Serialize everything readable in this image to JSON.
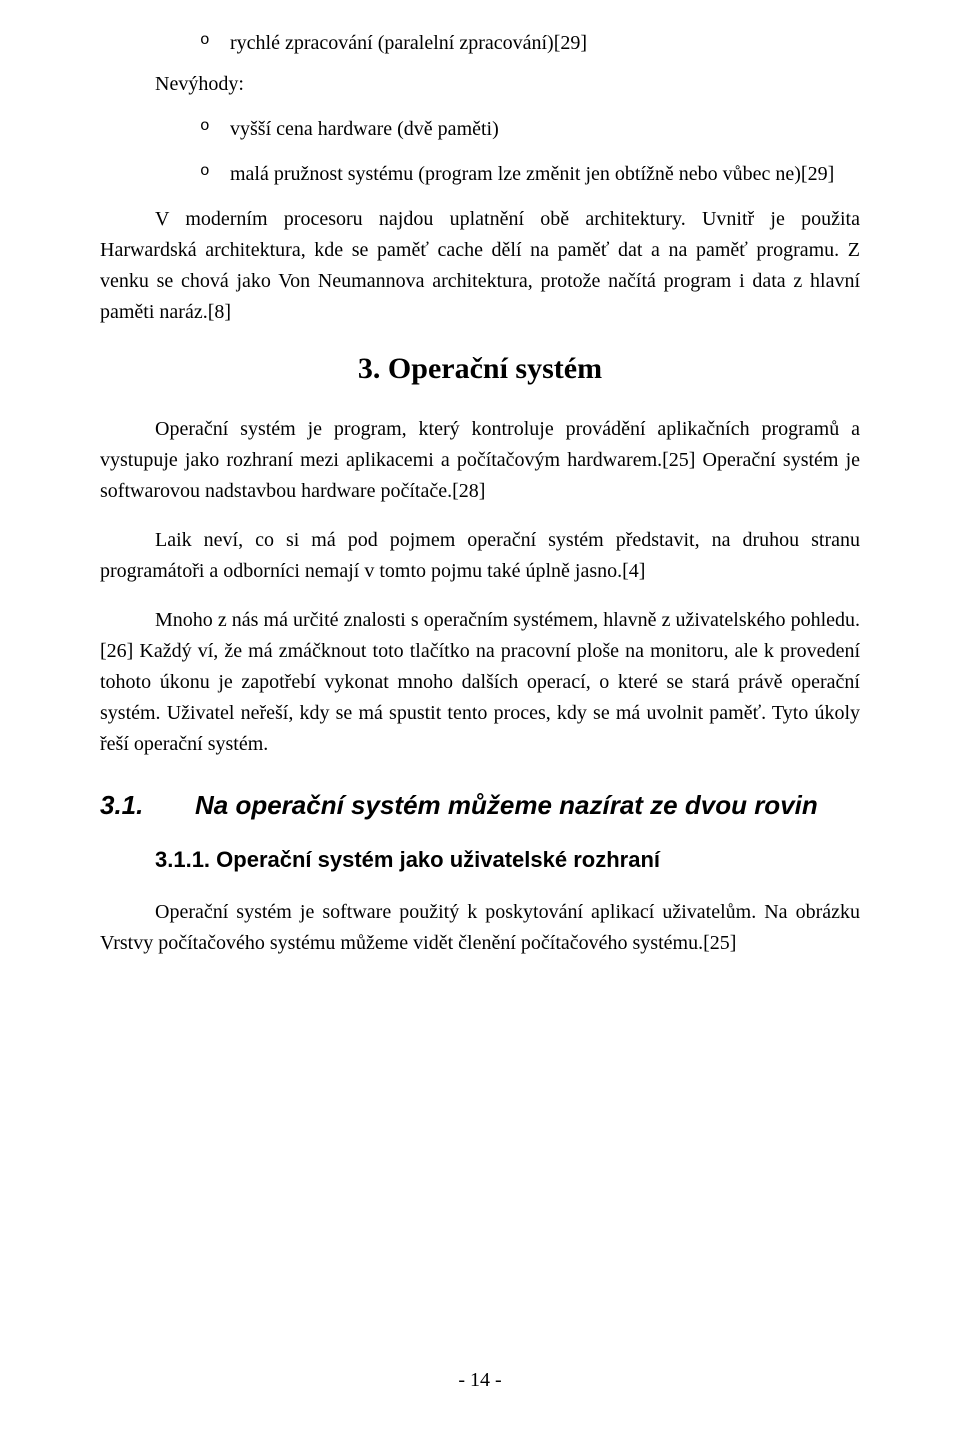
{
  "list_top": {
    "item1": "rychlé zpracování (paralelní zpracování)[29]"
  },
  "subhead": "Nevýhody:",
  "list_dis": {
    "item1": "vyšší cena hardware (dvě paměti)",
    "item2": "malá pružnost systému (program lze změnit jen obtížně nebo vůbec ne)[29]"
  },
  "para_arch": "V moderním procesoru najdou uplatnění obě architektury. Uvnitř je použita Harwardská architektura, kde se paměť cache dělí na paměť dat a na paměť programu. Z venku se chová jako Von Neumannova architektura, protože načítá program i data z hlavní paměti naráz.[8]",
  "h2": "3. Operační systém",
  "para_os1": "Operační systém je program, který kontroluje provádění aplikačních programů a vystupuje jako rozhraní mezi aplikacemi a počítačovým hardwarem.[25] Operační systém je softwarovou nadstavbou hardware počítače.[28]",
  "para_os2": "Laik neví, co si má pod pojmem operační systém představit, na druhou stranu programátoři a odborníci nemají v tomto pojmu také úplně jasno.[4]",
  "para_os3": "Mnoho z nás má určité znalosti s operačním systémem, hlavně z uživatelského pohledu.[26] Každý ví, že má zmáčknout toto tlačítko na pracovní ploše na monitoru, ale k provedení tohoto úkonu je zapotřebí vykonat mnoho dalších operací, o které se stará právě operační systém. Uživatel neřeší, kdy se má spustit tento proces, kdy se má uvolnit paměť. Tyto úkoly řeší operační systém.",
  "h3_num": "3.1.",
  "h3_text": "Na operační systém můžeme nazírat ze dvou rovin",
  "h4": "3.1.1. Operační systém jako uživatelské rozhraní",
  "para_ui": "Operační systém je software použitý k poskytování aplikací uživatelům. Na obrázku Vrstvy počítačového systému můžeme vidět členění počítačového systému.[25]",
  "footer": "- 14 -"
}
